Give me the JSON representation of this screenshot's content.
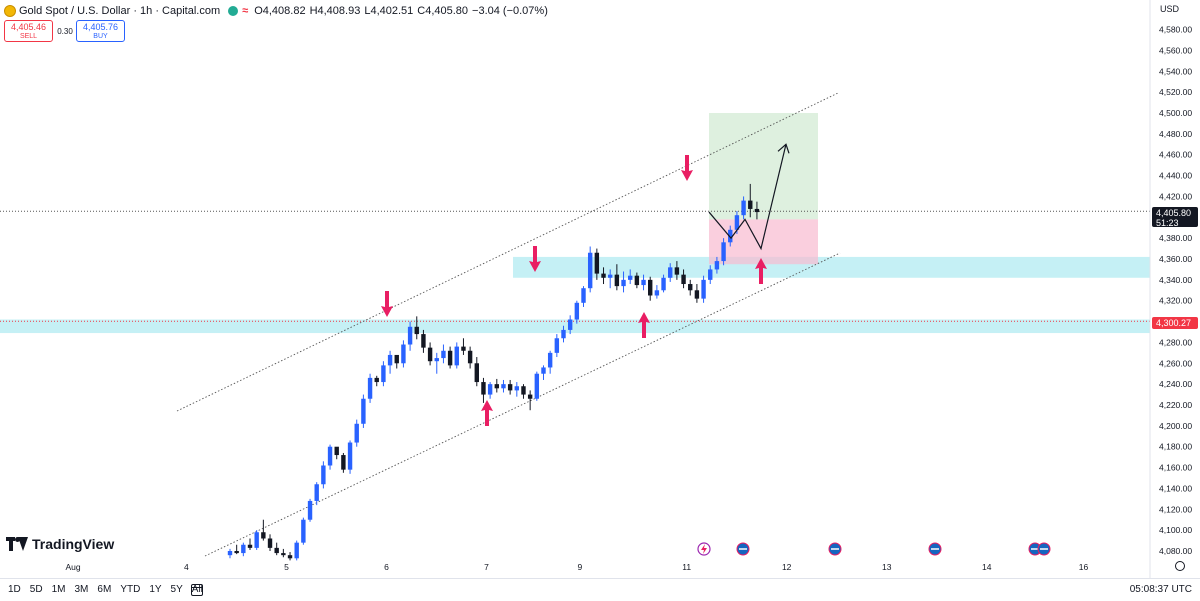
{
  "header": {
    "symbol": "Gold Spot / U.S. Dollar · 1h · Capital.com",
    "open": "O4,408.82",
    "high": "H4,408.93",
    "low": "L4,402.51",
    "close": "C4,405.80",
    "change": "−3.04 (−0.07%)"
  },
  "trade": {
    "sell_price": "4,405.46",
    "sell_label": "SELL",
    "spread": "0.30",
    "buy_price": "4,405.76",
    "buy_label": "BUY"
  },
  "price_axis": {
    "currency": "USD",
    "ticks": [
      "4,580.00",
      "4,560.00",
      "4,540.00",
      "4,520.00",
      "4,500.00",
      "4,480.00",
      "4,460.00",
      "4,440.00",
      "4,420.00",
      "4,380.00",
      "4,360.00",
      "4,340.00",
      "4,320.00",
      "4,280.00",
      "4,260.00",
      "4,240.00",
      "4,220.00",
      "4,200.00",
      "4,180.00",
      "4,160.00",
      "4,140.00",
      "4,120.00",
      "4,100.00",
      "4,080.00"
    ],
    "last_price": "4,405.80",
    "countdown": "51:23",
    "marked_level": "4,300.27"
  },
  "time_axis": {
    "ticks": [
      {
        "label": "Aug",
        "bar": 0
      },
      {
        "label": "4",
        "bar": 17
      },
      {
        "label": "5",
        "bar": 32
      },
      {
        "label": "6",
        "bar": 47
      },
      {
        "label": "7",
        "bar": 62
      },
      {
        "label": "9",
        "bar": 76
      },
      {
        "label": "11",
        "bar": 92
      },
      {
        "label": "12",
        "bar": 107
      },
      {
        "label": "13",
        "bar": 122
      },
      {
        "label": "14",
        "bar": 137
      },
      {
        "label": "16",
        "bar": 151.5
      }
    ]
  },
  "branding": {
    "logo_text": "TradingView"
  },
  "bottom_bar": {
    "ranges": [
      "1D",
      "5D",
      "1M",
      "3M",
      "6M",
      "YTD",
      "1Y",
      "5Y",
      "All"
    ],
    "clock": "05:08:37 UTC"
  },
  "colors": {
    "up": "#2962ff",
    "down": "#131722",
    "arrow": "#e91e63",
    "zone": "#b2ebf2",
    "target": "#c8e6c9",
    "stop": "#f8bbd0",
    "price_line_red": "#f23645"
  },
  "icons": [
    "gold-coin-icon",
    "market-open-icon",
    "lightning-event-icon",
    "us-flag-icon",
    "calendar-icon",
    "settings-icon"
  ],
  "chart_data": {
    "type": "candlestick",
    "symbol": "XAUUSD",
    "timeframe": "1h",
    "ylim": [
      4070,
      4600
    ],
    "last_price": 4405.8,
    "marked_level": 4300.27,
    "candles_ohlc": [
      [
        4076,
        4082,
        4073,
        4080
      ],
      [
        4080,
        4086,
        4077,
        4078
      ],
      [
        4078,
        4088,
        4075,
        4086
      ],
      [
        4086,
        4092,
        4081,
        4083
      ],
      [
        4083,
        4100,
        4081,
        4098
      ],
      [
        4098,
        4110,
        4090,
        4092
      ],
      [
        4092,
        4096,
        4080,
        4083
      ],
      [
        4083,
        4088,
        4076,
        4078
      ],
      [
        4078,
        4082,
        4074,
        4076
      ],
      [
        4076,
        4079,
        4071,
        4073
      ],
      [
        4073,
        4090,
        4071,
        4088
      ],
      [
        4088,
        4112,
        4086,
        4110
      ],
      [
        4110,
        4130,
        4108,
        4128
      ],
      [
        4128,
        4146,
        4124,
        4144
      ],
      [
        4144,
        4166,
        4140,
        4162
      ],
      [
        4162,
        4182,
        4158,
        4180
      ],
      [
        4180,
        4176,
        4168,
        4172
      ],
      [
        4172,
        4174,
        4155,
        4158
      ],
      [
        4158,
        4186,
        4154,
        4184
      ],
      [
        4184,
        4206,
        4180,
        4202
      ],
      [
        4202,
        4230,
        4198,
        4226
      ],
      [
        4226,
        4250,
        4222,
        4246
      ],
      [
        4246,
        4248,
        4238,
        4242
      ],
      [
        4242,
        4262,
        4238,
        4258
      ],
      [
        4258,
        4272,
        4250,
        4268
      ],
      [
        4268,
        4262,
        4255,
        4260
      ],
      [
        4260,
        4282,
        4256,
        4278
      ],
      [
        4278,
        4300,
        4272,
        4295
      ],
      [
        4295,
        4305,
        4283,
        4288
      ],
      [
        4288,
        4292,
        4270,
        4275
      ],
      [
        4275,
        4280,
        4258,
        4262
      ],
      [
        4262,
        4270,
        4250,
        4265
      ],
      [
        4265,
        4278,
        4260,
        4272
      ],
      [
        4272,
        4276,
        4255,
        4258
      ],
      [
        4258,
        4280,
        4255,
        4276
      ],
      [
        4276,
        4284,
        4268,
        4272
      ],
      [
        4272,
        4276,
        4255,
        4260
      ],
      [
        4260,
        4266,
        4238,
        4242
      ],
      [
        4242,
        4246,
        4222,
        4230
      ],
      [
        4230,
        4242,
        4226,
        4240
      ],
      [
        4240,
        4245,
        4232,
        4236
      ],
      [
        4236,
        4244,
        4232,
        4240
      ],
      [
        4240,
        4244,
        4230,
        4234
      ],
      [
        4234,
        4242,
        4228,
        4238
      ],
      [
        4238,
        4240,
        4226,
        4230
      ],
      [
        4230,
        4234,
        4215,
        4226
      ],
      [
        4226,
        4252,
        4224,
        4250
      ],
      [
        4250,
        4258,
        4244,
        4256
      ],
      [
        4256,
        4272,
        4250,
        4270
      ],
      [
        4270,
        4288,
        4266,
        4284
      ],
      [
        4284,
        4296,
        4280,
        4292
      ],
      [
        4292,
        4306,
        4288,
        4302
      ],
      [
        4302,
        4320,
        4298,
        4318
      ],
      [
        4318,
        4334,
        4314,
        4332
      ],
      [
        4332,
        4372,
        4328,
        4366
      ],
      [
        4366,
        4370,
        4340,
        4346
      ],
      [
        4346,
        4352,
        4336,
        4342
      ],
      [
        4342,
        4350,
        4332,
        4345
      ],
      [
        4345,
        4355,
        4330,
        4334
      ],
      [
        4334,
        4348,
        4328,
        4340
      ],
      [
        4340,
        4350,
        4336,
        4344
      ],
      [
        4344,
        4347,
        4332,
        4335
      ],
      [
        4335,
        4345,
        4330,
        4340
      ],
      [
        4340,
        4343,
        4320,
        4325
      ],
      [
        4325,
        4335,
        4322,
        4330
      ],
      [
        4330,
        4345,
        4328,
        4342
      ],
      [
        4342,
        4356,
        4338,
        4352
      ],
      [
        4352,
        4358,
        4340,
        4345
      ],
      [
        4345,
        4350,
        4332,
        4336
      ],
      [
        4336,
        4340,
        4325,
        4330
      ],
      [
        4330,
        4336,
        4318,
        4322
      ],
      [
        4322,
        4344,
        4318,
        4340
      ],
      [
        4340,
        4354,
        4336,
        4350
      ],
      [
        4350,
        4362,
        4346,
        4358
      ],
      [
        4358,
        4380,
        4354,
        4376
      ],
      [
        4376,
        4392,
        4372,
        4388
      ],
      [
        4388,
        4406,
        4384,
        4402
      ],
      [
        4402,
        4420,
        4398,
        4416
      ],
      [
        4416,
        4432,
        4400,
        4408
      ],
      [
        4408,
        4415,
        4398,
        4405
      ]
    ],
    "projection_path": [
      [
        4405,
        "now"
      ],
      [
        4380,
        "+1"
      ],
      [
        4398,
        "+2"
      ],
      [
        4370,
        "+3"
      ],
      [
        4470,
        "+5"
      ]
    ],
    "channel": {
      "upper": [
        [
          4222,
          "6 Aug"
        ],
        [
          4520,
          "12 Aug"
        ]
      ],
      "lower": [
        [
          4070,
          "4 Aug"
        ],
        [
          4365,
          "12 Aug"
        ]
      ]
    },
    "support_zones": [
      [
        4289,
        4302
      ],
      [
        4342,
        4362
      ]
    ],
    "target_zone": [
      4398,
      4500
    ],
    "stop_zone": [
      4355,
      4398
    ]
  }
}
